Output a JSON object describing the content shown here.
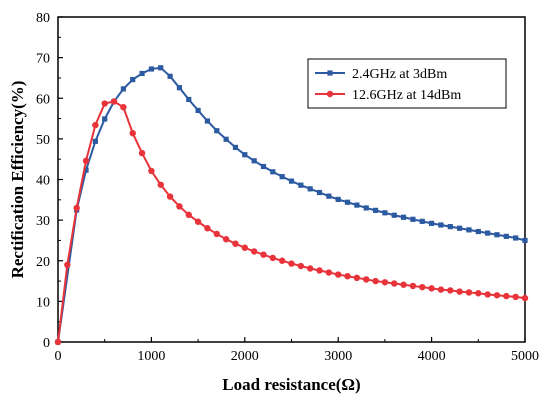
{
  "chart_data": {
    "type": "line",
    "title": "",
    "xlabel": "Load resistance(Ω)",
    "ylabel": "Rectification Efficiency(%)",
    "xlim": [
      0,
      5000
    ],
    "ylim": [
      0,
      80
    ],
    "xticks": [
      0,
      1000,
      2000,
      3000,
      4000,
      5000
    ],
    "yticks": [
      0,
      10,
      20,
      30,
      40,
      50,
      60,
      70,
      80
    ],
    "grid": false,
    "legend_position": "top-right",
    "series": [
      {
        "name": "2.4GHz at 3dBm",
        "color": "#2c5aa0",
        "marker": "square",
        "x": [
          0,
          200,
          300,
          400,
          500,
          600,
          700,
          800,
          900,
          1000,
          1100,
          1200,
          1300,
          1400,
          1500,
          1600,
          1700,
          1800,
          1900,
          2000,
          2100,
          2200,
          2300,
          2400,
          2500,
          2600,
          2700,
          2800,
          2900,
          3000,
          3100,
          3200,
          3300,
          3400,
          3500,
          3600,
          3700,
          3800,
          3900,
          4000,
          4100,
          4200,
          4300,
          4400,
          4500,
          4600,
          4700,
          4800,
          4900,
          5000
        ],
        "y": [
          0,
          32.5,
          42.3,
          49.4,
          54.9,
          59.2,
          62.3,
          64.6,
          66.1,
          67.2,
          67.5,
          65.4,
          62.6,
          59.7,
          57.0,
          54.4,
          52.0,
          49.9,
          47.9,
          46.1,
          44.6,
          43.2,
          41.9,
          40.7,
          39.6,
          38.6,
          37.7,
          36.8,
          35.9,
          35.1,
          34.4,
          33.7,
          33.0,
          32.4,
          31.8,
          31.2,
          30.7,
          30.2,
          29.7,
          29.2,
          28.8,
          28.4,
          28.0,
          27.6,
          27.2,
          26.8,
          26.4,
          26.0,
          25.6,
          25.0
        ]
      },
      {
        "name": "12.6GHz at 14dBm",
        "color": "#e8333a",
        "marker": "circle",
        "x": [
          0,
          100,
          200,
          300,
          400,
          500,
          600,
          700,
          800,
          900,
          1000,
          1100,
          1200,
          1300,
          1400,
          1500,
          1600,
          1700,
          1800,
          1900,
          2000,
          2100,
          2200,
          2300,
          2400,
          2500,
          2600,
          2700,
          2800,
          2900,
          3000,
          3100,
          3200,
          3300,
          3400,
          3500,
          3600,
          3700,
          3800,
          3900,
          4000,
          4100,
          4200,
          4300,
          4400,
          4500,
          4600,
          4700,
          4800,
          4900,
          5000
        ],
        "y": [
          0,
          19.0,
          33.0,
          44.6,
          53.4,
          58.7,
          59.2,
          57.8,
          51.4,
          46.5,
          42.1,
          38.7,
          35.8,
          33.4,
          31.3,
          29.6,
          28.0,
          26.6,
          25.3,
          24.2,
          23.2,
          22.3,
          21.5,
          20.7,
          20.0,
          19.3,
          18.7,
          18.1,
          17.6,
          17.1,
          16.6,
          16.2,
          15.8,
          15.4,
          15.0,
          14.7,
          14.4,
          14.1,
          13.8,
          13.5,
          13.2,
          12.9,
          12.7,
          12.4,
          12.2,
          12.0,
          11.7,
          11.5,
          11.3,
          11.1,
          10.8
        ]
      }
    ]
  }
}
